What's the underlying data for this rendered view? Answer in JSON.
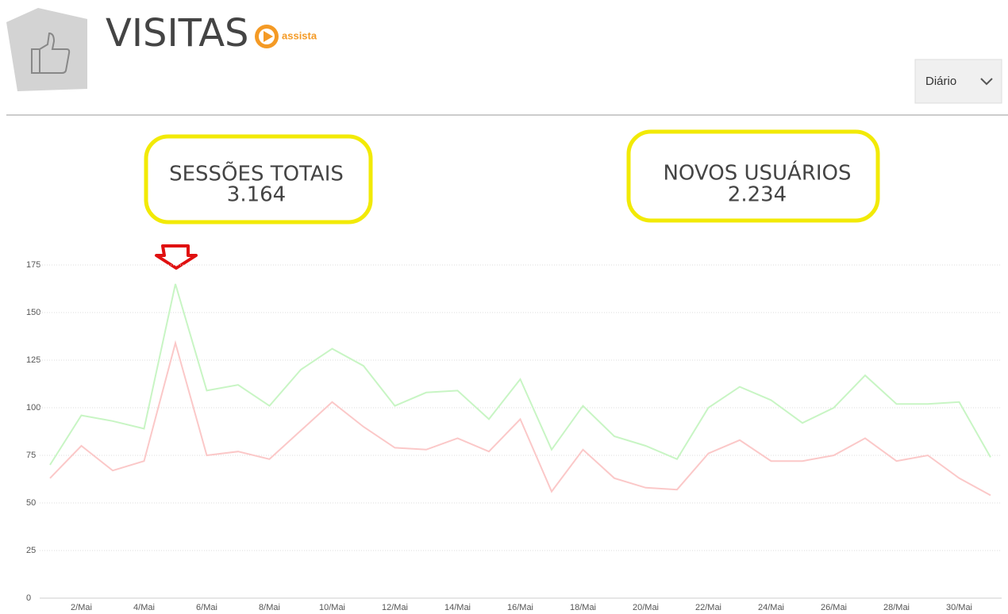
{
  "header": {
    "title": "VISITAS",
    "video_link": "assista",
    "period_select": "Diário"
  },
  "stats": [
    {
      "label": "SESSÕES TOTAIS",
      "value": "3.164"
    },
    {
      "label": "NOVOS USUÁRIOS",
      "value": "2.234"
    }
  ],
  "chart_data": {
    "type": "line",
    "categories": [
      null,
      "2/Mai",
      null,
      "4/Mai",
      null,
      "6/Mai",
      null,
      "8/Mai",
      null,
      "10/Mai",
      null,
      "12/Mai",
      null,
      "14/Mai",
      null,
      "16/Mai",
      null,
      "18/Mai",
      null,
      "20/Mai",
      null,
      "22/Mai",
      null,
      "24/Mai",
      null,
      "26/Mai",
      null,
      "28/Mai",
      null,
      "30/Mai",
      null
    ],
    "series": [
      {
        "color": "#c8f5c4",
        "values": [
          70,
          96,
          93,
          89,
          165,
          109,
          112,
          101,
          120,
          131,
          122,
          101,
          108,
          109,
          94,
          115,
          78,
          101,
          85,
          80,
          73,
          100,
          111,
          104,
          92,
          100,
          117,
          102,
          102,
          103,
          74
        ]
      },
      {
        "color": "#fbc8c8",
        "values": [
          63,
          80,
          67,
          72,
          134,
          75,
          77,
          73,
          88,
          103,
          90,
          79,
          78,
          84,
          77,
          94,
          56,
          78,
          63,
          58,
          57,
          76,
          83,
          72,
          72,
          75,
          84,
          72,
          75,
          63,
          54
        ]
      }
    ],
    "ylim": [
      0,
      175
    ],
    "yticks": [
      0,
      25,
      50,
      75,
      100,
      125,
      150,
      175
    ],
    "grid": true
  }
}
